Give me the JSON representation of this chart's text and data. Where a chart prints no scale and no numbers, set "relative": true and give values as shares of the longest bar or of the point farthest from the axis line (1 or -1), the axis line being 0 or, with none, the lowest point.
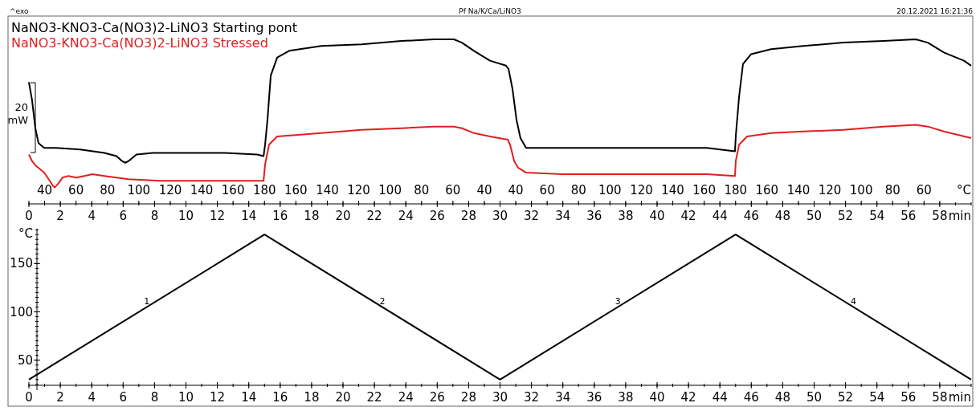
{
  "chart_data": [
    {
      "type": "line",
      "relative": true,
      "legend": "top left",
      "xlabel": "min",
      "xlim": [
        0,
        60
      ],
      "xticks": [
        0,
        2,
        4,
        6,
        8,
        10,
        12,
        14,
        16,
        18,
        20,
        22,
        24,
        26,
        28,
        30,
        32,
        34,
        36,
        38,
        40,
        42,
        44,
        46,
        48,
        50,
        52,
        54,
        56,
        58
      ],
      "annotations": [
        "^exo",
        "Pf Na/K/Ca/LiNO3",
        "20.12.2021 16:21:36",
        "20 mW",
        "40",
        "60",
        "80",
        "100",
        "120",
        "140",
        "160",
        "180",
        "160",
        "140",
        "120",
        "100",
        "80",
        "60",
        "40",
        "40",
        "60",
        "80",
        "100",
        "120",
        "140",
        "160",
        "180",
        "160",
        "140",
        "120",
        "100",
        "80",
        "60",
        "°C"
      ],
      "series": [
        {
          "name": "NaNO3-KNO3-Ca(NO3)2-LiNO3 Starting pont",
          "color": "#000000",
          "x": [
            0,
            0.2,
            0.41,
            0.61,
            0.97,
            1.74,
            3.27,
            4.81,
            5.58,
            5.93,
            6.14,
            6.34,
            6.85,
            7.88,
            9.92,
            12.48,
            14.53,
            14.94,
            15.04,
            15.19,
            15.4,
            15.81,
            16.57,
            18.62,
            21.18,
            23.73,
            25.78,
            27.06,
            27.57,
            28.34,
            29.36,
            30.38,
            30.54,
            30.79,
            31.05,
            31.3,
            31.66,
            32.43,
            35.5,
            39.08,
            43.17,
            44.96,
            45.01,
            45.22,
            45.47,
            45.99,
            47.26,
            49.31,
            51.87,
            54.42,
            56.47,
            57.24,
            58.26,
            59.54,
            60
          ],
          "values": [
            0.74,
            0.63,
            0.46,
            0.37,
            0.34,
            0.34,
            0.33,
            0.31,
            0.29,
            0.26,
            0.25,
            0.26,
            0.3,
            0.31,
            0.31,
            0.31,
            0.3,
            0.29,
            0.36,
            0.51,
            0.78,
            0.89,
            0.93,
            0.96,
            0.97,
            0.99,
            1.0,
            1.0,
            0.98,
            0.93,
            0.87,
            0.84,
            0.82,
            0.7,
            0.51,
            0.4,
            0.34,
            0.34,
            0.34,
            0.34,
            0.34,
            0.32,
            0.41,
            0.65,
            0.85,
            0.91,
            0.94,
            0.96,
            0.98,
            0.99,
            1.0,
            0.98,
            0.92,
            0.87,
            0.84
          ]
        },
        {
          "name": "NaNO3-KNO3-Ca(NO3)2-LiNO3 Stressed",
          "color": "#e02020",
          "x": [
            0,
            0.2,
            0.46,
            0.97,
            1.33,
            1.53,
            1.64,
            1.84,
            2.15,
            2.51,
            3.02,
            3.53,
            4.04,
            4.81,
            6.34,
            8.39,
            10.95,
            13.5,
            14.94,
            15.04,
            15.29,
            15.81,
            18.62,
            21.18,
            23.73,
            25.78,
            27.06,
            27.57,
            28.34,
            29.36,
            30.49,
            30.64,
            30.9,
            31.15,
            31.66,
            33.96,
            39.08,
            43.17,
            44.96,
            45.01,
            45.22,
            45.73,
            47.26,
            49.31,
            51.87,
            54.42,
            56.47,
            57.24,
            58.26,
            60
          ],
          "values": [
            0.3,
            0.26,
            0.23,
            0.19,
            0.14,
            0.11,
            0.1,
            0.12,
            0.16,
            0.17,
            0.16,
            0.17,
            0.18,
            0.17,
            0.15,
            0.14,
            0.14,
            0.14,
            0.14,
            0.24,
            0.36,
            0.41,
            0.43,
            0.45,
            0.46,
            0.47,
            0.47,
            0.46,
            0.43,
            0.41,
            0.39,
            0.36,
            0.26,
            0.22,
            0.19,
            0.18,
            0.18,
            0.18,
            0.17,
            0.26,
            0.36,
            0.41,
            0.43,
            0.44,
            0.45,
            0.47,
            0.48,
            0.47,
            0.44,
            0.4
          ]
        }
      ]
    },
    {
      "type": "line",
      "xlabel": "min",
      "ylabel": "°C",
      "xlim": [
        0,
        60
      ],
      "ylim": [
        24,
        186
      ],
      "xticks": [
        0,
        2,
        4,
        6,
        8,
        10,
        12,
        14,
        16,
        18,
        20,
        22,
        24,
        26,
        28,
        30,
        32,
        34,
        36,
        38,
        40,
        42,
        44,
        46,
        48,
        50,
        52,
        54,
        56,
        58
      ],
      "yticks": [
        50,
        100,
        150
      ],
      "annotations": [
        {
          "text": "1",
          "x": 7.5,
          "y": 105
        },
        {
          "text": "2",
          "x": 22.5,
          "y": 105
        },
        {
          "text": "3",
          "x": 37.5,
          "y": 105
        },
        {
          "text": "4",
          "x": 52.5,
          "y": 105
        }
      ],
      "series": [
        {
          "color": "#000000",
          "x": [
            0,
            15,
            30,
            45,
            60
          ],
          "values": [
            30,
            180,
            30,
            180,
            30
          ]
        }
      ]
    }
  ]
}
